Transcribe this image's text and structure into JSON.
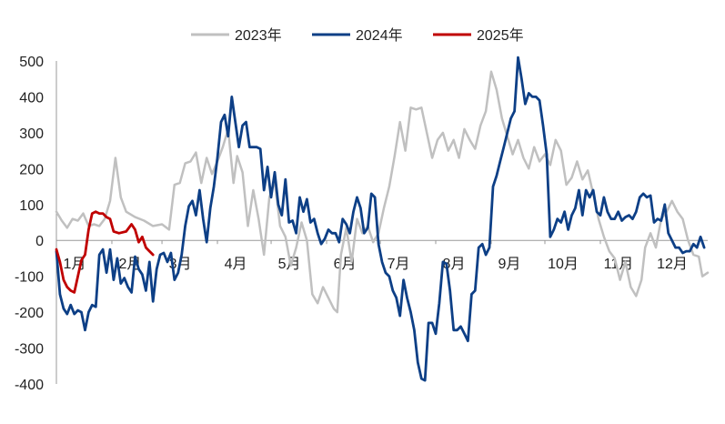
{
  "chart_data": {
    "type": "line",
    "title": "",
    "xlabel": "",
    "ylabel": "",
    "ylim": [
      -400,
      500
    ],
    "y_ticks": [
      "500",
      "400",
      "300",
      "200",
      "100",
      "0",
      "-100",
      "-200",
      "-300",
      "-400"
    ],
    "month_labels": [
      "1月",
      "2月",
      "3月",
      "4月",
      "5月",
      "6月",
      "7月",
      "8月",
      "9月",
      "10月",
      "11月",
      "12月"
    ],
    "grid": false,
    "legend_position": "top",
    "series": [
      {
        "name": "2023年",
        "color": "#c0c0c0",
        "points": [
          [
            1,
            80
          ],
          [
            4,
            55
          ],
          [
            7,
            35
          ],
          [
            10,
            60
          ],
          [
            13,
            55
          ],
          [
            16,
            75
          ],
          [
            19,
            40
          ],
          [
            22,
            45
          ],
          [
            25,
            40
          ],
          [
            28,
            60
          ],
          [
            31,
            110
          ],
          [
            34,
            230
          ],
          [
            37,
            120
          ],
          [
            40,
            80
          ],
          [
            45,
            65
          ],
          [
            50,
            55
          ],
          [
            55,
            40
          ],
          [
            60,
            45
          ],
          [
            64,
            30
          ],
          [
            67,
            155
          ],
          [
            70,
            160
          ],
          [
            73,
            215
          ],
          [
            76,
            220
          ],
          [
            79,
            245
          ],
          [
            82,
            160
          ],
          [
            85,
            230
          ],
          [
            88,
            185
          ],
          [
            91,
            220
          ],
          [
            94,
            260
          ],
          [
            97,
            310
          ],
          [
            100,
            160
          ],
          [
            102,
            235
          ],
          [
            105,
            190
          ],
          [
            108,
            40
          ],
          [
            111,
            140
          ],
          [
            114,
            60
          ],
          [
            117,
            -40
          ],
          [
            120,
            120
          ],
          [
            123,
            165
          ],
          [
            126,
            40
          ],
          [
            129,
            10
          ],
          [
            132,
            -70
          ],
          [
            135,
            -20
          ],
          [
            138,
            50
          ],
          [
            141,
            0
          ],
          [
            144,
            -150
          ],
          [
            147,
            -175
          ],
          [
            150,
            -130
          ],
          [
            153,
            -160
          ],
          [
            156,
            -190
          ],
          [
            158,
            -200
          ],
          [
            160,
            -40
          ],
          [
            163,
            35
          ],
          [
            166,
            -60
          ],
          [
            169,
            60
          ],
          [
            172,
            20
          ],
          [
            175,
            40
          ],
          [
            178,
            -5
          ],
          [
            181,
            20
          ],
          [
            184,
            90
          ],
          [
            187,
            150
          ],
          [
            190,
            235
          ],
          [
            193,
            330
          ],
          [
            196,
            250
          ],
          [
            199,
            370
          ],
          [
            202,
            365
          ],
          [
            205,
            370
          ],
          [
            208,
            300
          ],
          [
            211,
            230
          ],
          [
            214,
            280
          ],
          [
            217,
            300
          ],
          [
            220,
            250
          ],
          [
            223,
            280
          ],
          [
            226,
            230
          ],
          [
            229,
            310
          ],
          [
            232,
            280
          ],
          [
            235,
            255
          ],
          [
            238,
            320
          ],
          [
            241,
            360
          ],
          [
            244,
            470
          ],
          [
            247,
            420
          ],
          [
            250,
            340
          ],
          [
            253,
            290
          ],
          [
            256,
            240
          ],
          [
            259,
            280
          ],
          [
            262,
            230
          ],
          [
            265,
            200
          ],
          [
            268,
            260
          ],
          [
            271,
            220
          ],
          [
            274,
            240
          ],
          [
            277,
            210
          ],
          [
            280,
            280
          ],
          [
            283,
            250
          ],
          [
            286,
            155
          ],
          [
            289,
            175
          ],
          [
            292,
            220
          ],
          [
            295,
            170
          ],
          [
            298,
            195
          ],
          [
            301,
            130
          ],
          [
            304,
            60
          ],
          [
            307,
            10
          ],
          [
            310,
            -30
          ],
          [
            313,
            -50
          ],
          [
            316,
            -110
          ],
          [
            319,
            -60
          ],
          [
            322,
            -130
          ],
          [
            325,
            -155
          ],
          [
            328,
            -110
          ],
          [
            330,
            -20
          ],
          [
            333,
            20
          ],
          [
            336,
            -20
          ],
          [
            339,
            60
          ],
          [
            342,
            80
          ],
          [
            345,
            110
          ],
          [
            348,
            80
          ],
          [
            351,
            60
          ],
          [
            354,
            0
          ],
          [
            357,
            -40
          ],
          [
            360,
            -45
          ],
          [
            362,
            -100
          ],
          [
            365,
            -90
          ]
        ]
      },
      {
        "name": "2024年",
        "color": "#0d3f86",
        "points": [
          [
            1,
            -30
          ],
          [
            3,
            -150
          ],
          [
            5,
            -190
          ],
          [
            7,
            -205
          ],
          [
            9,
            -180
          ],
          [
            11,
            -205
          ],
          [
            13,
            -195
          ],
          [
            15,
            -200
          ],
          [
            17,
            -250
          ],
          [
            19,
            -200
          ],
          [
            21,
            -180
          ],
          [
            23,
            -185
          ],
          [
            25,
            -40
          ],
          [
            27,
            -25
          ],
          [
            29,
            -90
          ],
          [
            31,
            -25
          ],
          [
            33,
            -110
          ],
          [
            35,
            -50
          ],
          [
            37,
            -120
          ],
          [
            39,
            -105
          ],
          [
            41,
            -130
          ],
          [
            43,
            -145
          ],
          [
            45,
            -45
          ],
          [
            47,
            -80
          ],
          [
            49,
            -95
          ],
          [
            51,
            -140
          ],
          [
            53,
            -60
          ],
          [
            55,
            -170
          ],
          [
            57,
            -80
          ],
          [
            59,
            -40
          ],
          [
            61,
            -35
          ],
          [
            63,
            -60
          ],
          [
            65,
            -35
          ],
          [
            67,
            -110
          ],
          [
            69,
            -90
          ],
          [
            71,
            -40
          ],
          [
            73,
            40
          ],
          [
            75,
            95
          ],
          [
            77,
            110
          ],
          [
            79,
            70
          ],
          [
            81,
            140
          ],
          [
            83,
            60
          ],
          [
            85,
            -5
          ],
          [
            87,
            90
          ],
          [
            89,
            150
          ],
          [
            91,
            230
          ],
          [
            93,
            330
          ],
          [
            95,
            350
          ],
          [
            97,
            290
          ],
          [
            99,
            400
          ],
          [
            101,
            330
          ],
          [
            103,
            260
          ],
          [
            105,
            320
          ],
          [
            107,
            330
          ],
          [
            109,
            260
          ],
          [
            111,
            260
          ],
          [
            113,
            260
          ],
          [
            115,
            255
          ],
          [
            117,
            140
          ],
          [
            119,
            205
          ],
          [
            121,
            120
          ],
          [
            123,
            190
          ],
          [
            125,
            100
          ],
          [
            127,
            70
          ],
          [
            129,
            170
          ],
          [
            131,
            50
          ],
          [
            133,
            55
          ],
          [
            135,
            20
          ],
          [
            137,
            120
          ],
          [
            139,
            80
          ],
          [
            141,
            115
          ],
          [
            143,
            50
          ],
          [
            145,
            60
          ],
          [
            147,
            20
          ],
          [
            149,
            -10
          ],
          [
            151,
            5
          ],
          [
            153,
            30
          ],
          [
            155,
            20
          ],
          [
            157,
            20
          ],
          [
            159,
            -5
          ],
          [
            161,
            60
          ],
          [
            163,
            45
          ],
          [
            165,
            20
          ],
          [
            167,
            80
          ],
          [
            169,
            120
          ],
          [
            171,
            90
          ],
          [
            173,
            20
          ],
          [
            175,
            35
          ],
          [
            177,
            130
          ],
          [
            179,
            120
          ],
          [
            181,
            -10
          ],
          [
            183,
            -60
          ],
          [
            185,
            -90
          ],
          [
            187,
            -100
          ],
          [
            189,
            -140
          ],
          [
            191,
            -160
          ],
          [
            193,
            -210
          ],
          [
            195,
            -110
          ],
          [
            197,
            -160
          ],
          [
            199,
            -200
          ],
          [
            201,
            -250
          ],
          [
            203,
            -340
          ],
          [
            205,
            -385
          ],
          [
            207,
            -390
          ],
          [
            209,
            -230
          ],
          [
            211,
            -230
          ],
          [
            213,
            -260
          ],
          [
            215,
            -175
          ],
          [
            217,
            -60
          ],
          [
            219,
            -65
          ],
          [
            221,
            -140
          ],
          [
            223,
            -250
          ],
          [
            225,
            -250
          ],
          [
            227,
            -240
          ],
          [
            229,
            -260
          ],
          [
            231,
            -280
          ],
          [
            233,
            -150
          ],
          [
            235,
            -140
          ],
          [
            237,
            -20
          ],
          [
            239,
            -10
          ],
          [
            241,
            -40
          ],
          [
            243,
            -20
          ],
          [
            245,
            150
          ],
          [
            247,
            180
          ],
          [
            249,
            220
          ],
          [
            251,
            260
          ],
          [
            253,
            300
          ],
          [
            255,
            340
          ],
          [
            257,
            360
          ],
          [
            259,
            510
          ],
          [
            261,
            450
          ],
          [
            263,
            380
          ],
          [
            265,
            410
          ],
          [
            267,
            400
          ],
          [
            269,
            400
          ],
          [
            271,
            390
          ],
          [
            273,
            320
          ],
          [
            275,
            240
          ],
          [
            277,
            10
          ],
          [
            279,
            30
          ],
          [
            281,
            60
          ],
          [
            283,
            50
          ],
          [
            285,
            80
          ],
          [
            287,
            30
          ],
          [
            289,
            70
          ],
          [
            291,
            90
          ],
          [
            293,
            140
          ],
          [
            295,
            70
          ],
          [
            297,
            140
          ],
          [
            299,
            120
          ],
          [
            301,
            140
          ],
          [
            303,
            80
          ],
          [
            305,
            70
          ],
          [
            307,
            120
          ],
          [
            309,
            80
          ],
          [
            311,
            60
          ],
          [
            313,
            60
          ],
          [
            315,
            80
          ],
          [
            317,
            55
          ],
          [
            319,
            65
          ],
          [
            321,
            70
          ],
          [
            323,
            60
          ],
          [
            325,
            80
          ],
          [
            327,
            120
          ],
          [
            329,
            130
          ],
          [
            331,
            120
          ],
          [
            333,
            125
          ],
          [
            335,
            50
          ],
          [
            337,
            60
          ],
          [
            339,
            55
          ],
          [
            341,
            100
          ],
          [
            343,
            20
          ],
          [
            345,
            0
          ],
          [
            347,
            -20
          ],
          [
            349,
            -20
          ],
          [
            351,
            -35
          ],
          [
            353,
            -30
          ],
          [
            355,
            -30
          ],
          [
            357,
            -10
          ],
          [
            359,
            -20
          ],
          [
            361,
            10
          ],
          [
            363,
            -20
          ]
        ]
      },
      {
        "name": "2025年",
        "color": "#c00000",
        "points": [
          [
            1,
            -25
          ],
          [
            3,
            -60
          ],
          [
            5,
            -110
          ],
          [
            7,
            -130
          ],
          [
            9,
            -140
          ],
          [
            11,
            -145
          ],
          [
            13,
            -100
          ],
          [
            15,
            -55
          ],
          [
            17,
            -40
          ],
          [
            19,
            30
          ],
          [
            21,
            75
          ],
          [
            23,
            80
          ],
          [
            25,
            75
          ],
          [
            27,
            75
          ],
          [
            29,
            65
          ],
          [
            31,
            60
          ],
          [
            33,
            25
          ],
          [
            36,
            20
          ],
          [
            40,
            25
          ],
          [
            43,
            45
          ],
          [
            45,
            30
          ],
          [
            47,
            -5
          ],
          [
            49,
            10
          ],
          [
            51,
            -20
          ],
          [
            53,
            -30
          ],
          [
            55,
            -40
          ]
        ]
      }
    ]
  }
}
